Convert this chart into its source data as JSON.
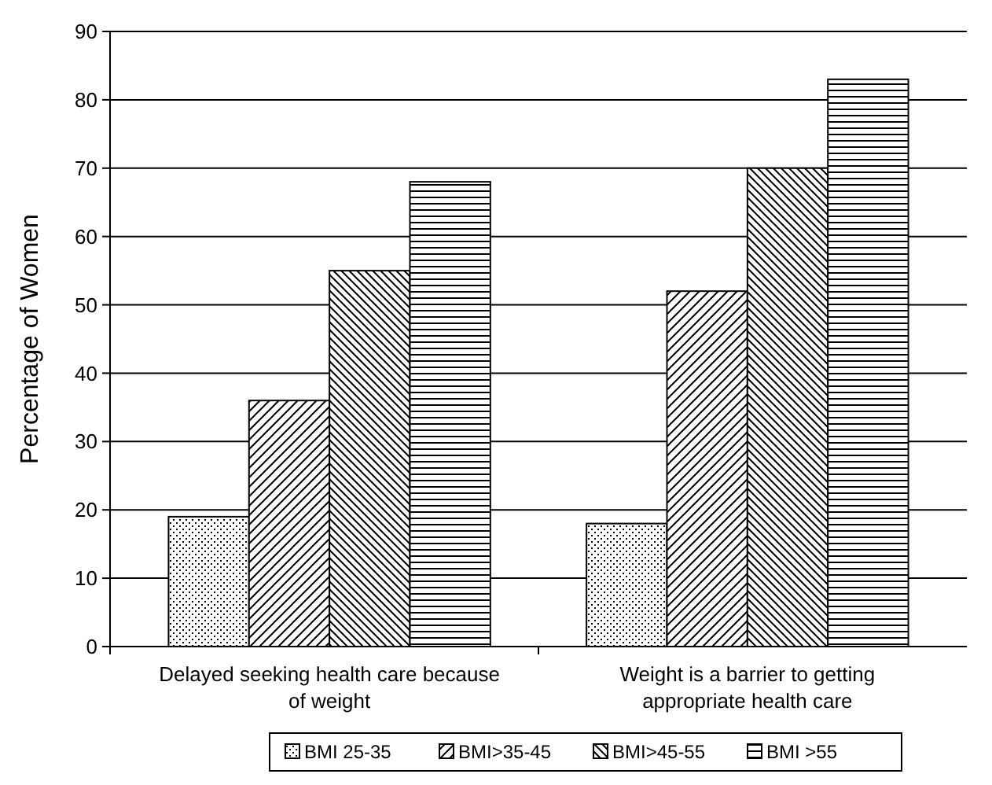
{
  "chart_data": {
    "type": "bar",
    "ylabel": "Percentage of Women",
    "categories": [
      "Delayed seeking health care because of weight",
      "Weight is a barrier to getting appropriate health care"
    ],
    "series": [
      {
        "name": "BMI 25-35",
        "color": "#000000",
        "values": [
          19,
          18
        ]
      },
      {
        "name": "BMI>35-45",
        "color": "#000000",
        "values": [
          36,
          52
        ]
      },
      {
        "name": "BMI>45-55",
        "color": "#000000",
        "values": [
          55,
          70
        ]
      },
      {
        "name": "BMI >55",
        "color": "#000000",
        "values": [
          68,
          83
        ]
      }
    ],
    "ylim": [
      0,
      90
    ],
    "yticks": [
      0,
      10,
      20,
      30,
      40,
      50,
      60,
      70,
      80,
      90
    ],
    "grid": "y",
    "legend": "bottom"
  }
}
